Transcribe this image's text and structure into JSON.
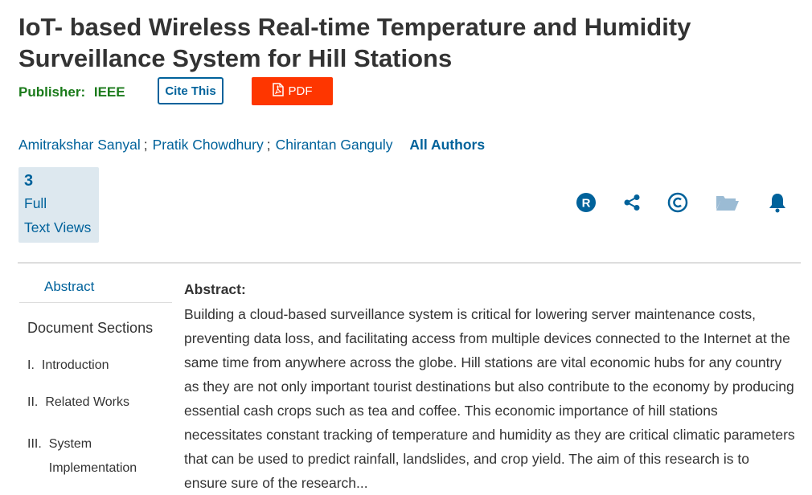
{
  "article": {
    "title": "IoT- based Wireless Real-time Temperature and Humidity Surveillance System for Hill Stations",
    "publisher_label": "Publisher:",
    "publisher_name": "IEEE"
  },
  "buttons": {
    "cite": "Cite This",
    "pdf": "PDF"
  },
  "authors": {
    "list": [
      "Amitrakshar Sanyal",
      "Pratik Chowdhury",
      "Chirantan Ganguly"
    ],
    "separator": ";",
    "all_authors": "All Authors"
  },
  "metrics": {
    "count": "3",
    "label_line1": "Full",
    "label_line2": "Text Views"
  },
  "action_icons": [
    "rights-icon",
    "share-icon",
    "copyright-icon",
    "folder-icon",
    "bell-icon"
  ],
  "sidenav": {
    "abstract": "Abstract",
    "document_sections": "Document Sections",
    "sections": [
      {
        "num": "I.",
        "title": "Introduction"
      },
      {
        "num": "II.",
        "title": "Related Works"
      },
      {
        "num": "III.",
        "title": "System Implementation"
      }
    ]
  },
  "abstract": {
    "heading": "Abstract:",
    "text": "Building a cloud-based surveillance system is critical for lowering server maintenance costs, preventing data loss, and facilitating access from multiple devices connected to the Internet at the same time from anywhere across the globe. Hill stations are vital economic hubs for any country as they are not only important tourist destinations but also contribute to the economy by producing essential cash crops such as tea and coffee. This economic importance of hill stations necessitates constant tracking of temperature and humidity as they are critical climatic parameters that can be used to predict rainfall, landslides, and crop yield. The aim of this research is to ensure sure of the research..."
  },
  "colors": {
    "link": "#00629b",
    "publisher": "#1a7a1a",
    "pdf_button": "#fe3600",
    "metrics_bg": "#dde8ef"
  }
}
